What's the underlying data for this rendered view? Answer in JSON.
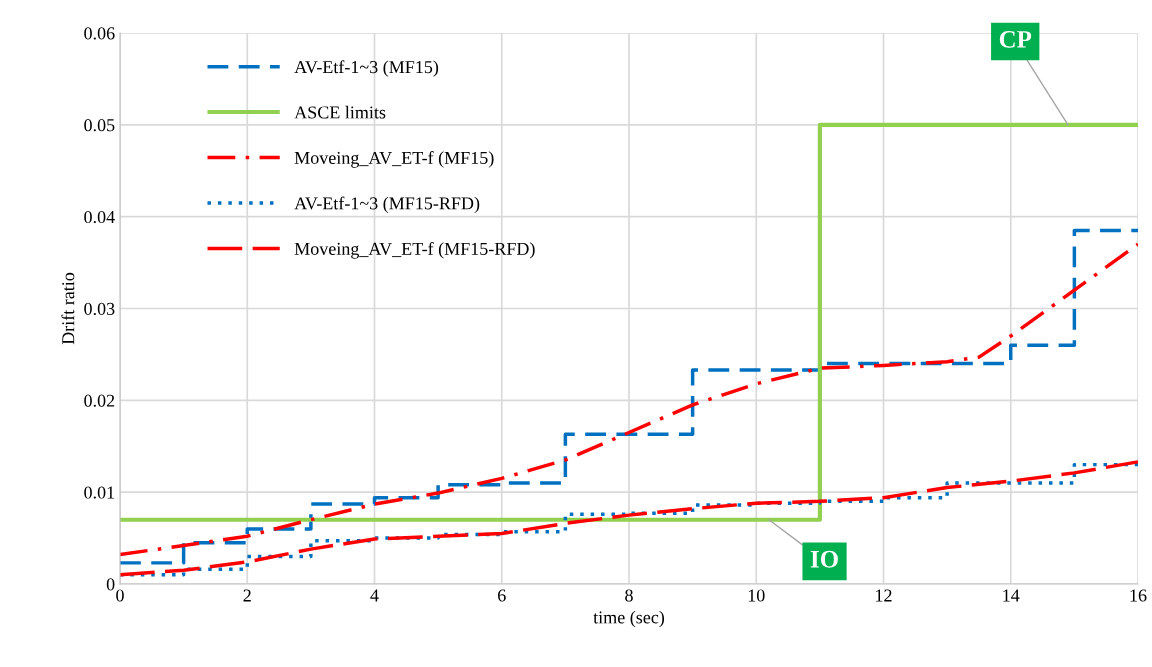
{
  "chart_data": {
    "type": "line",
    "xlabel": "time (sec)",
    "ylabel": "Drift ratio",
    "xlim": [
      0,
      16
    ],
    "xticks": [
      0,
      2,
      4,
      6,
      8,
      10,
      12,
      14,
      16
    ],
    "ylim": [
      0,
      0.06
    ],
    "yticks": [
      0,
      0.01,
      0.02,
      0.03,
      0.04,
      0.05,
      0.06
    ],
    "grid": true,
    "legend": "top left",
    "marker": "none",
    "series": [
      {
        "name": "AV-Etf-1~3 (MF15)",
        "type": "step",
        "color": "#0070c0",
        "line_style": "dashed",
        "x": [
          0,
          1,
          2,
          3,
          4,
          5,
          6,
          7,
          8,
          9,
          10,
          11,
          12,
          13,
          14,
          15,
          16
        ],
        "values": [
          0.0023,
          0.0045,
          0.006,
          0.0087,
          0.0094,
          0.0108,
          0.011,
          0.0163,
          0.0163,
          0.0233,
          0.0233,
          0.024,
          0.024,
          0.024,
          0.026,
          0.0385,
          0.0385
        ]
      },
      {
        "name": "ASCE limits",
        "type": "step",
        "color": "#92d050",
        "line_style": "solid",
        "x": [
          0,
          11,
          16
        ],
        "values": [
          0.007,
          0.05,
          0.05
        ]
      },
      {
        "name": "Moveing_AV_ET-f (MF15)",
        "color": "#ff0000",
        "line_style": "dashdot",
        "x": [
          0,
          1,
          2,
          3,
          4,
          5,
          6,
          7,
          8,
          9,
          10,
          11,
          12,
          13,
          13.5,
          14,
          15,
          16
        ],
        "values": [
          0.0032,
          0.0042,
          0.0052,
          0.007,
          0.0087,
          0.0099,
          0.0115,
          0.0135,
          0.0165,
          0.0195,
          0.0218,
          0.0235,
          0.0238,
          0.0242,
          0.0247,
          0.027,
          0.032,
          0.037
        ]
      },
      {
        "name": "AV-Etf-1~3 (MF15-RFD)",
        "type": "step",
        "color": "#0070c0",
        "line_style": "dotted",
        "x": [
          0,
          1,
          2,
          3,
          4,
          5,
          6,
          7,
          8,
          9,
          10,
          11,
          12,
          13,
          14,
          15,
          16
        ],
        "values": [
          0.001,
          0.0016,
          0.003,
          0.0047,
          0.005,
          0.0054,
          0.0057,
          0.0076,
          0.0077,
          0.0086,
          0.0088,
          0.009,
          0.0094,
          0.011,
          0.011,
          0.013,
          0.013
        ]
      },
      {
        "name": "Moveing_AV_ET-f (MF15-RFD)",
        "color": "#ff0000",
        "line_style": "dashed",
        "x": [
          0,
          1,
          2,
          3,
          4,
          5,
          6,
          7,
          8,
          9,
          10,
          11,
          12,
          13,
          14,
          15,
          16
        ],
        "values": [
          0.001,
          0.0015,
          0.0024,
          0.0038,
          0.0049,
          0.0052,
          0.0055,
          0.0066,
          0.0075,
          0.0082,
          0.0088,
          0.009,
          0.0094,
          0.0105,
          0.0112,
          0.0121,
          0.0133
        ]
      }
    ],
    "annotations": [
      {
        "text": "IO",
        "x": 10.2,
        "y": 0.007
      },
      {
        "text": "CP",
        "x": 14.9,
        "y": 0.05
      }
    ]
  }
}
